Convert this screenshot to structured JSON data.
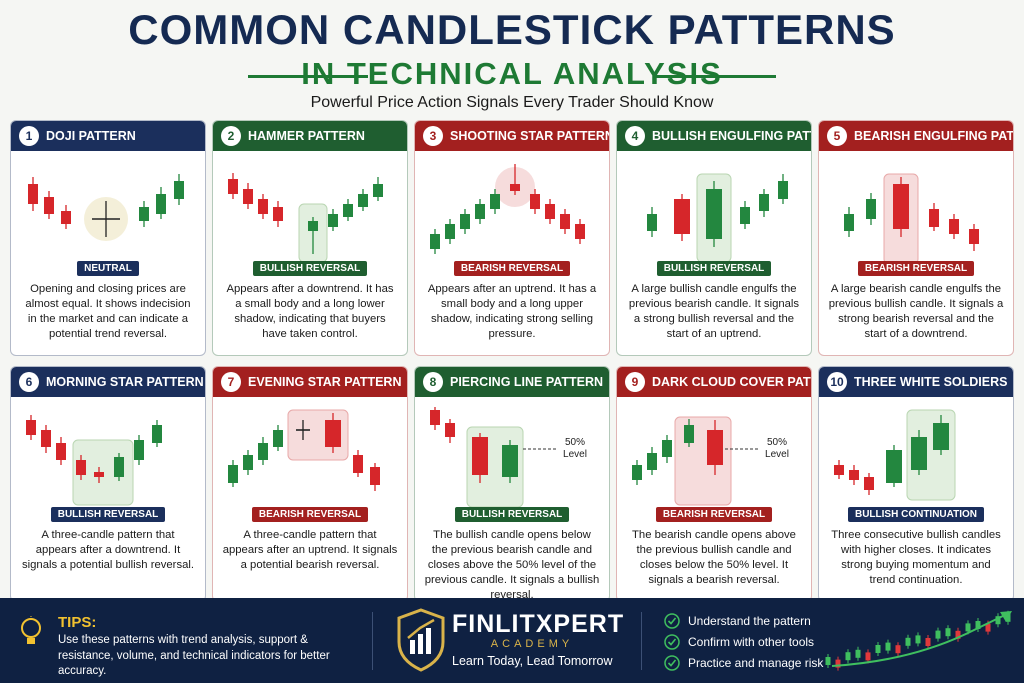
{
  "header": {
    "title": "COMMON CANDLESTICK PATTERNS",
    "title_line2": "IN TECHNICAL ANALYSIS",
    "subtitle": "Powerful Price Action Signals Every Trader Should Know"
  },
  "cards": [
    {
      "number": 1,
      "title": "DOJI PATTERN",
      "tag": "NEUTRAL",
      "color": "#1b2f5c",
      "description": "Opening and closing prices are almost equal. It shows indecision in the market and can indicate a potential trend reversal."
    },
    {
      "number": 2,
      "title": "HAMMER PATTERN",
      "tag": "BULLISH REVERSAL",
      "color": "#1f5e30",
      "description": "Appears after a downtrend. It has a small body and a long lower shadow, indicating that buyers have taken control."
    },
    {
      "number": 3,
      "title": "SHOOTING STAR PATTERN",
      "tag": "BEARISH REVERSAL",
      "color": "#a3201f",
      "description": "Appears after an uptrend. It has a small body and a long upper shadow, indicating strong selling pressure."
    },
    {
      "number": 4,
      "title": "BULLISH ENGULFING PATTERN",
      "tag": "BULLISH REVERSAL",
      "color": "#1f5e30",
      "description": "A large bullish candle engulfs the previous bearish candle. It signals a strong bullish reversal and the start of an uptrend."
    },
    {
      "number": 5,
      "title": "BEARISH ENGULFING PATTERN",
      "tag": "BEARISH REVERSAL",
      "color": "#a3201f",
      "description": "A large bearish candle engulfs the previous bullish candle. It signals a strong bearish reversal and the start of a downtrend."
    },
    {
      "number": 6,
      "title": "MORNING STAR PATTERN",
      "tag": "BULLISH REVERSAL",
      "color": "#1b2f5c",
      "description": "A three-candle pattern that appears after a downtrend. It signals a potential bullish reversal."
    },
    {
      "number": 7,
      "title": "EVENING STAR PATTERN",
      "tag": "BEARISH REVERSAL",
      "color": "#a3201f",
      "description": "A three-candle pattern that appears after an uptrend. It signals a potential bearish reversal."
    },
    {
      "number": 8,
      "title": "PIERCING LINE PATTERN",
      "tag": "BULLISH REVERSAL",
      "color": "#1f5e30",
      "description": "The bullish candle opens below the previous bearish candle and closes above the 50% level of the previous candle. It signals a bullish reversal.",
      "note": [
        "50%",
        "Level"
      ]
    },
    {
      "number": 9,
      "title": "DARK CLOUD COVER PATTERN",
      "tag": "BEARISH REVERSAL",
      "color": "#a3201f",
      "description": "The bearish candle opens above the previous bullish candle and closes below the 50% level. It signals a bearish reversal.",
      "note": [
        "50%",
        "Level"
      ]
    },
    {
      "number": 10,
      "title": "THREE WHITE SOLDIERS",
      "tag": "BULLISH CONTINUATION",
      "color": "#1b2f5c",
      "description": "Three consecutive bullish candles with higher closes. It indicates strong buying momentum and trend continuation."
    }
  ],
  "footer": {
    "tips_title": "TIPS:",
    "tips_text": "Use these patterns with trend analysis, support & resistance, volume, and technical indicators for better accuracy.",
    "brand": "FINLITXPERT",
    "brand_sub": "ACADEMY",
    "tagline": "Learn Today, Lead Tomorrow",
    "checklist": [
      "Understand the pattern",
      "Confirm with other tools",
      "Practice and manage risk"
    ]
  }
}
